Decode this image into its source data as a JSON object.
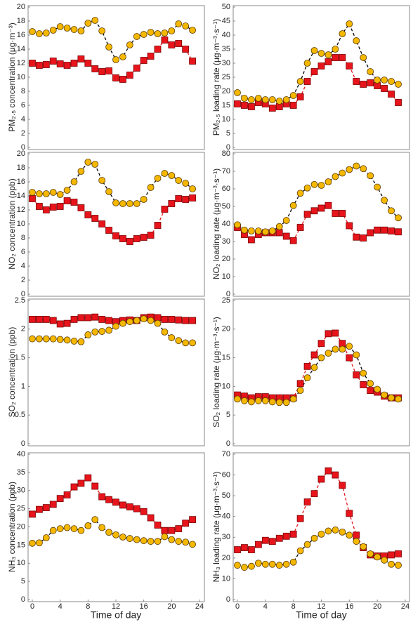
{
  "chart_data": [
    {
      "type": "line",
      "ylabel": "PM₂.₅ concentration (μg·m⁻³)",
      "x": [
        0,
        1,
        2,
        3,
        4,
        5,
        6,
        7,
        8,
        9,
        10,
        11,
        12,
        13,
        14,
        15,
        16,
        17,
        18,
        19,
        20,
        21,
        22,
        23
      ],
      "xlim": [
        0,
        24
      ],
      "ylim": [
        0,
        20
      ],
      "yticks": [
        0,
        2,
        4,
        6,
        8,
        10,
        12,
        14,
        16,
        18,
        20
      ],
      "series": [
        {
          "color": "#e8141c",
          "line_color": "#e8141c",
          "marker": "square",
          "values": [
            12.0,
            11.7,
            11.8,
            12.3,
            11.9,
            11.7,
            12.0,
            12.6,
            12.0,
            11.2,
            10.8,
            10.9,
            9.9,
            9.7,
            10.3,
            11.3,
            12.4,
            13.0,
            14.0,
            15.3,
            14.6,
            14.8,
            14.0,
            12.3
          ]
        },
        {
          "color": "#f5b800",
          "line_color": "#000000",
          "marker": "circle",
          "values": [
            16.5,
            16.2,
            16.3,
            16.7,
            17.2,
            17.0,
            16.8,
            16.6,
            17.7,
            18.1,
            16.6,
            14.3,
            12.5,
            12.9,
            14.6,
            15.8,
            16.1,
            16.4,
            16.2,
            16.3,
            16.6,
            17.6,
            17.3,
            16.7
          ]
        }
      ]
    },
    {
      "type": "line",
      "ylabel": "PM₂.₅ loading rate (μg·m⁻³·s⁻¹)",
      "x": [
        0,
        1,
        2,
        3,
        4,
        5,
        6,
        7,
        8,
        9,
        10,
        11,
        12,
        13,
        14,
        15,
        16,
        17,
        18,
        19,
        20,
        21,
        22,
        23
      ],
      "xlim": [
        0,
        24
      ],
      "ylim": [
        0,
        50
      ],
      "yticks": [
        0,
        5,
        10,
        15,
        20,
        25,
        30,
        35,
        40,
        45,
        50
      ],
      "series": [
        {
          "color": "#e8141c",
          "line_color": "#e8141c",
          "marker": "square",
          "values": [
            15.5,
            15,
            14.5,
            16,
            15.5,
            14,
            14.5,
            15.5,
            15,
            18,
            23.5,
            27,
            29,
            30.5,
            32,
            32,
            29,
            23.5,
            22.5,
            23,
            22,
            21,
            19,
            16
          ]
        },
        {
          "color": "#f5b800",
          "line_color": "#000000",
          "marker": "circle",
          "values": [
            19.5,
            17.5,
            17,
            17.5,
            17,
            17,
            16.5,
            17,
            18.5,
            23.5,
            30,
            34.5,
            33.5,
            33,
            35,
            40.5,
            44,
            38,
            32,
            27,
            24,
            24,
            23.5,
            22.5
          ]
        }
      ]
    },
    {
      "type": "line",
      "ylabel": "NO₂ concentration (ppb)",
      "x": [
        0,
        1,
        2,
        3,
        4,
        5,
        6,
        7,
        8,
        9,
        10,
        11,
        12,
        13,
        14,
        15,
        16,
        17,
        18,
        19,
        20,
        21,
        22,
        23
      ],
      "xlim": [
        0,
        24
      ],
      "ylim": [
        0,
        20
      ],
      "yticks": [
        0,
        2,
        4,
        6,
        8,
        10,
        12,
        14,
        16,
        18,
        20
      ],
      "series": [
        {
          "color": "#e8141c",
          "line_color": "#e8141c",
          "marker": "square",
          "values": [
            13.6,
            12.5,
            12,
            12.4,
            12.5,
            13.3,
            13.1,
            12.3,
            11.3,
            10.8,
            10.0,
            9.1,
            8.3,
            7.9,
            7.5,
            7.9,
            8.1,
            8.4,
            9.8,
            12.1,
            12.9,
            13.6,
            13.5,
            13.7
          ]
        },
        {
          "color": "#f5b800",
          "line_color": "#000000",
          "marker": "circle",
          "values": [
            14.5,
            14.3,
            14.3,
            14.5,
            14.2,
            14.8,
            16,
            17.5,
            18.8,
            18.5,
            16.2,
            14.6,
            13,
            12.9,
            12.9,
            12.9,
            13.5,
            15.2,
            16.5,
            17.2,
            16.9,
            16.2,
            15.8,
            15.0
          ]
        }
      ]
    },
    {
      "type": "line",
      "ylabel": "NO₂ loading rate (μg·m⁻³·s⁻¹)",
      "x": [
        0,
        1,
        2,
        3,
        4,
        5,
        6,
        7,
        8,
        9,
        10,
        11,
        12,
        13,
        14,
        15,
        16,
        17,
        18,
        19,
        20,
        21,
        22,
        23
      ],
      "xlim": [
        0,
        24
      ],
      "ylim": [
        0,
        80
      ],
      "yticks": [
        0,
        10,
        20,
        30,
        40,
        50,
        60,
        70,
        80
      ],
      "series": [
        {
          "color": "#e8141c",
          "line_color": "#e8141c",
          "marker": "square",
          "values": [
            38,
            34,
            31,
            34,
            35,
            35,
            35,
            33,
            30.5,
            38,
            45.5,
            47.5,
            49,
            50.5,
            46,
            46,
            39,
            32.5,
            32,
            35,
            36.5,
            36.5,
            36,
            35.5
          ]
        },
        {
          "color": "#f5b800",
          "line_color": "#000000",
          "marker": "circle",
          "values": [
            39.5,
            36.5,
            36,
            36,
            35.5,
            36,
            38.5,
            42,
            50.5,
            57.5,
            60.5,
            62.5,
            62,
            64,
            67,
            69,
            71,
            73,
            71.5,
            67.5,
            61,
            53.5,
            47.5,
            43.5
          ]
        }
      ]
    },
    {
      "type": "line",
      "ylabel": "SO₂ concentration (ppb)",
      "x": [
        0,
        1,
        2,
        3,
        4,
        5,
        6,
        7,
        8,
        9,
        10,
        11,
        12,
        13,
        14,
        15,
        16,
        17,
        18,
        19,
        20,
        21,
        22,
        23
      ],
      "xlim": [
        0,
        24
      ],
      "ylim": [
        0,
        2.5
      ],
      "yticks": [
        0,
        0.5,
        1,
        1.5,
        2,
        2.5
      ],
      "series": [
        {
          "color": "#e8141c",
          "line_color": "#e8141c",
          "marker": "square",
          "values": [
            2.17,
            2.17,
            2.17,
            2.15,
            2.09,
            2.1,
            2.17,
            2.2,
            2.2,
            2.21,
            2.17,
            2.15,
            2.13,
            2.15,
            2.16,
            2.15,
            2.2,
            2.21,
            2.2,
            2.17,
            2.17,
            2.16,
            2.15,
            2.15
          ]
        },
        {
          "color": "#f5b800",
          "line_color": "#000000",
          "marker": "circle",
          "values": [
            1.83,
            1.83,
            1.83,
            1.83,
            1.82,
            1.81,
            1.79,
            1.78,
            1.9,
            1.95,
            1.96,
            1.98,
            2.05,
            2.1,
            2.13,
            2.15,
            2.18,
            2.15,
            2.1,
            1.95,
            1.85,
            1.8,
            1.76,
            1.76
          ]
        }
      ]
    },
    {
      "type": "line",
      "ylabel": "SO₂ loading rate (μg·m⁻³·s⁻¹)",
      "x": [
        0,
        1,
        2,
        3,
        4,
        5,
        6,
        7,
        8,
        9,
        10,
        11,
        12,
        13,
        14,
        15,
        16,
        17,
        18,
        19,
        20,
        21,
        22,
        23
      ],
      "xlim": [
        0,
        24
      ],
      "ylim": [
        0,
        25
      ],
      "yticks": [
        0,
        5,
        10,
        15,
        20,
        25
      ],
      "series": [
        {
          "color": "#e8141c",
          "line_color": "#e8141c",
          "marker": "square",
          "values": [
            8.5,
            8.3,
            8,
            8.2,
            8.2,
            8,
            8,
            8,
            8,
            10.5,
            13.5,
            15.5,
            17.5,
            19.2,
            19.3,
            17.5,
            15,
            12,
            10.3,
            9.3,
            9,
            8.3,
            8,
            8
          ]
        },
        {
          "color": "#f5b800",
          "line_color": "#000000",
          "marker": "circle",
          "values": [
            7.8,
            7.5,
            7.3,
            7.5,
            7.5,
            7.3,
            7.2,
            7.2,
            7.8,
            9.3,
            11.5,
            13.3,
            15,
            15.8,
            16.5,
            16.5,
            17,
            15.5,
            12.3,
            10.5,
            9.5,
            8.5,
            8,
            7.8
          ]
        }
      ]
    },
    {
      "type": "line",
      "ylabel": "NH₃ concentration (ppb)",
      "xlabel": "Time of day",
      "x": [
        0,
        1,
        2,
        3,
        4,
        5,
        6,
        7,
        8,
        9,
        10,
        11,
        12,
        13,
        14,
        15,
        16,
        17,
        18,
        19,
        20,
        21,
        22,
        23
      ],
      "xlim": [
        0,
        24
      ],
      "xticks": [
        0,
        4,
        8,
        12,
        16,
        20,
        24
      ],
      "ylim": [
        0,
        40
      ],
      "yticks": [
        0,
        5,
        10,
        15,
        20,
        25,
        30,
        35,
        40
      ],
      "series": [
        {
          "color": "#e8141c",
          "line_color": "#e8141c",
          "marker": "square",
          "values": [
            23.5,
            24.8,
            25.3,
            26.2,
            27.8,
            28.8,
            31,
            32,
            33.5,
            31.2,
            28.3,
            27.5,
            26.8,
            26,
            25.5,
            25,
            24.2,
            22.5,
            20.5,
            19,
            19,
            19.5,
            21,
            22
          ]
        },
        {
          "color": "#f5b800",
          "line_color": "#000000",
          "marker": "circle",
          "values": [
            15.5,
            15.6,
            17,
            19,
            19.5,
            19.8,
            19.5,
            19,
            20.3,
            22,
            19.8,
            18.5,
            17.8,
            17.2,
            16.8,
            16.5,
            16.2,
            16,
            16,
            17.3,
            16.5,
            16,
            15.8,
            15.2
          ]
        }
      ]
    },
    {
      "type": "line",
      "ylabel": "NH₃ loading rate (μg·m⁻³·s⁻¹)",
      "xlabel": "Time of day",
      "x": [
        0,
        1,
        2,
        3,
        4,
        5,
        6,
        7,
        8,
        9,
        10,
        11,
        12,
        13,
        14,
        15,
        16,
        17,
        18,
        19,
        20,
        21,
        22,
        23
      ],
      "xlim": [
        0,
        24
      ],
      "xticks": [
        0,
        4,
        8,
        12,
        16,
        20,
        24
      ],
      "ylim": [
        0,
        70
      ],
      "yticks": [
        0,
        10,
        20,
        30,
        40,
        50,
        60,
        70
      ],
      "series": [
        {
          "color": "#e8141c",
          "line_color": "#e8141c",
          "marker": "square",
          "values": [
            24,
            25,
            24,
            26.5,
            28.5,
            28,
            29.5,
            30.5,
            31.5,
            39,
            47,
            51,
            58,
            62,
            60,
            55,
            41.5,
            31,
            25,
            21.5,
            21,
            21,
            21.5,
            22
          ]
        },
        {
          "color": "#f5b800",
          "line_color": "#000000",
          "marker": "circle",
          "values": [
            16.5,
            15.5,
            16,
            17.5,
            17,
            17,
            16.5,
            17,
            18,
            23.5,
            26.5,
            29.5,
            31.5,
            33,
            33.5,
            32.5,
            31,
            28,
            25.5,
            22,
            20.5,
            19,
            17,
            16.5
          ]
        }
      ]
    }
  ]
}
